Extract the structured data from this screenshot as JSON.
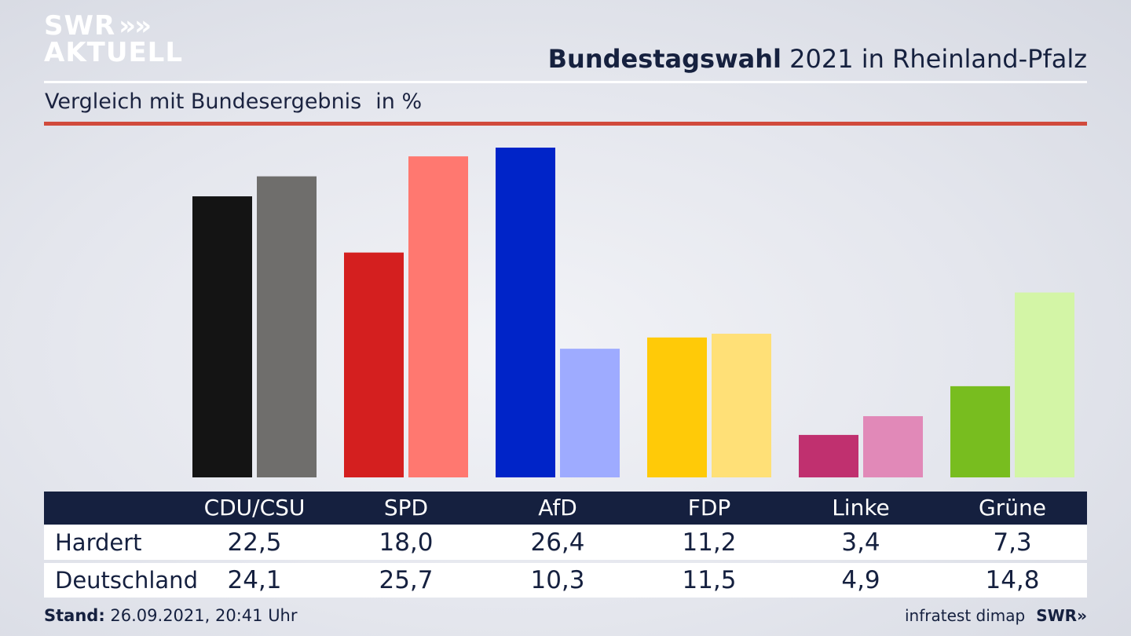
{
  "branding": {
    "logo_line1": "SWR",
    "logo_line2": "AKTUELL",
    "logo_chevrons": "»",
    "footer_source": "infratest dimap",
    "footer_logo": "SWR»"
  },
  "header": {
    "title_bold": "Bundestagswahl",
    "title_rest": "2021 in Rheinland-Pfalz",
    "subtitle": "Vergleich mit Bundesergebnis",
    "unit": "in %"
  },
  "footer": {
    "stand_label": "Stand:",
    "stand_value": "26.09.2021, 20:41 Uhr"
  },
  "colors": {
    "accent_red_rule": "#d14a3c",
    "table_header_bg": "#15203f"
  },
  "chart_data": {
    "type": "bar",
    "categories": [
      "CDU/CSU",
      "SPD",
      "AfD",
      "FDP",
      "Linke",
      "Grüne"
    ],
    "series": [
      {
        "name": "Hardert",
        "values": [
          22.5,
          18.0,
          26.4,
          11.2,
          3.4,
          7.3
        ],
        "display": [
          "22,5",
          "18,0",
          "26,4",
          "11,2",
          "3,4",
          "7,3"
        ],
        "colors": [
          "#141414",
          "#d41f1f",
          "#0024c8",
          "#ffca08",
          "#c0306f",
          "#78bd1f"
        ]
      },
      {
        "name": "Deutschland",
        "values": [
          24.1,
          25.7,
          10.3,
          11.5,
          4.9,
          14.8
        ],
        "display": [
          "24,1",
          "25,7",
          "10,3",
          "11,5",
          "4,9",
          "14,8"
        ],
        "colors": [
          "#6f6e6c",
          "#ff7870",
          "#9eabff",
          "#ffe077",
          "#e189b8",
          "#d3f5a6"
        ]
      }
    ],
    "ylim": [
      0,
      26.4
    ]
  }
}
